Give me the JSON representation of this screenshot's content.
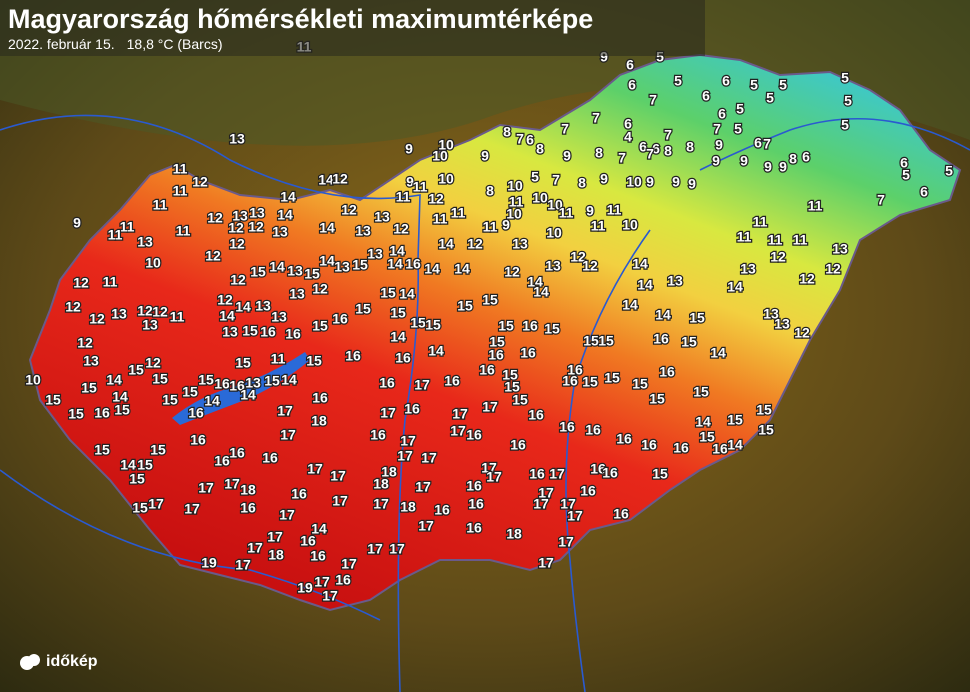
{
  "header": {
    "title": "Magyarország hőmérsékleti maximumtérképe",
    "date": "2022. február 15.",
    "record": "18,8 °C (Barcs)"
  },
  "logo": "időkép",
  "stations": [
    11,
    9,
    6,
    5,
    5,
    6,
    7,
    6,
    6,
    5,
    5,
    5,
    5,
    5,
    5,
    5,
    6,
    7,
    5,
    7,
    6,
    4,
    6,
    6,
    7,
    8,
    8,
    9,
    6,
    7,
    7,
    8,
    7,
    6,
    8,
    9,
    8,
    7,
    7,
    9,
    9,
    9,
    9,
    8,
    6,
    6,
    5,
    5,
    6,
    7,
    11,
    9,
    10,
    10,
    9,
    9,
    11,
    11,
    12,
    10,
    8,
    10,
    5,
    7,
    8,
    9,
    10,
    9,
    9,
    9,
    11,
    10,
    10,
    10,
    9,
    11,
    9,
    11,
    10,
    11,
    10,
    13,
    11,
    12,
    11,
    11,
    14,
    13,
    11,
    12,
    11,
    11,
    9,
    11,
    11,
    13,
    11,
    12,
    13,
    13,
    14,
    14,
    14,
    12,
    12,
    12,
    12,
    13,
    14,
    13,
    13,
    12,
    12,
    12,
    10,
    11,
    12,
    12,
    15,
    14,
    13,
    15,
    14,
    13,
    15,
    13,
    14,
    13,
    12,
    12,
    14,
    13,
    14,
    13,
    12,
    12,
    13,
    12,
    12,
    11,
    13,
    12,
    13,
    12,
    15,
    15,
    14,
    15,
    10,
    15,
    15,
    16,
    15,
    14,
    15,
    15,
    15,
    14,
    16,
    16,
    13,
    15,
    14,
    14,
    16,
    13,
    15,
    16,
    16,
    15,
    16,
    15,
    15,
    11,
    15,
    16,
    14,
    16,
    15,
    14,
    14,
    14,
    12,
    13,
    12,
    12,
    14,
    14,
    15,
    15,
    15,
    15,
    15,
    14,
    14,
    16,
    15,
    15,
    16,
    15,
    16,
    16,
    15,
    15,
    14,
    13,
    14,
    14,
    14,
    15,
    16,
    15,
    14,
    13,
    14,
    11,
    11,
    11,
    11,
    12,
    13,
    12,
    12,
    13,
    13,
    12,
    16,
    17,
    16,
    16,
    15,
    15,
    16,
    16,
    15,
    15,
    15,
    16,
    15,
    15,
    15,
    16,
    17,
    16,
    17,
    18,
    17,
    17,
    16,
    14,
    15,
    15,
    15,
    15,
    16,
    14,
    16,
    16,
    16,
    16,
    16,
    16,
    16,
    17,
    17,
    17,
    16,
    17,
    16,
    15,
    15,
    15,
    14,
    15,
    16,
    16,
    16,
    17,
    18,
    17,
    17,
    17,
    18,
    18,
    17,
    17,
    16,
    17,
    17,
    16,
    17,
    16,
    16,
    15,
    17,
    17,
    17,
    17,
    16,
    16,
    16,
    16,
    17,
    17,
    17,
    18,
    16,
    16,
    17,
    16,
    18,
    17,
    17,
    15,
    17,
    17,
    14,
    16,
    16,
    17,
    17,
    18,
    17,
    17,
    17,
    17,
    19,
    19,
    17,
    17,
    16
  ]
}
